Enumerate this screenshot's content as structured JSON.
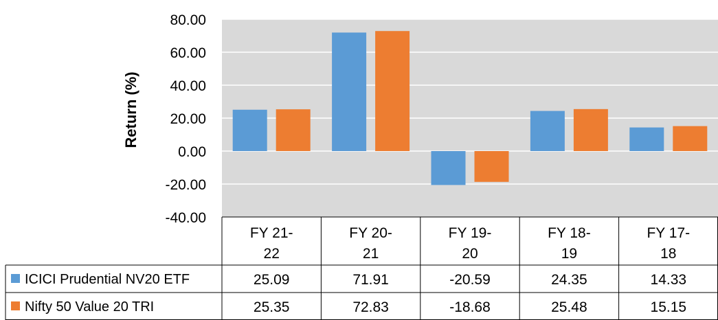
{
  "chart_data": {
    "type": "bar",
    "title": "",
    "xlabel": "",
    "ylabel": "Return (%)",
    "ylim": [
      -40,
      80
    ],
    "yticks": [
      "80.00",
      "60.00",
      "40.00",
      "20.00",
      "0.00",
      "-20.00",
      "-40.00"
    ],
    "grid": true,
    "legend": "data-table",
    "categories": [
      [
        "FY 21-",
        "22"
      ],
      [
        "FY 20-",
        "21"
      ],
      [
        "FY 19-",
        "20"
      ],
      [
        "FY 18-",
        "19"
      ],
      [
        "FY 17-",
        "18"
      ]
    ],
    "series": [
      {
        "name": "ICICI Prudential NV20 ETF",
        "color": "#5b9bd5",
        "values": [
          25.09,
          71.91,
          -20.59,
          24.35,
          14.33
        ],
        "labels": [
          "25.09",
          "71.91",
          "-20.59",
          "24.35",
          "14.33"
        ]
      },
      {
        "name": "Nifty 50 Value 20 TRI",
        "color": "#ed7d31",
        "values": [
          25.35,
          72.83,
          -18.68,
          25.48,
          15.15
        ],
        "labels": [
          "25.35",
          "72.83",
          "-18.68",
          "25.48",
          "15.15"
        ]
      }
    ],
    "colors": {
      "plot_background": "#d9d9d9",
      "gridline": "#ffffff",
      "table_border": "#000000"
    }
  }
}
